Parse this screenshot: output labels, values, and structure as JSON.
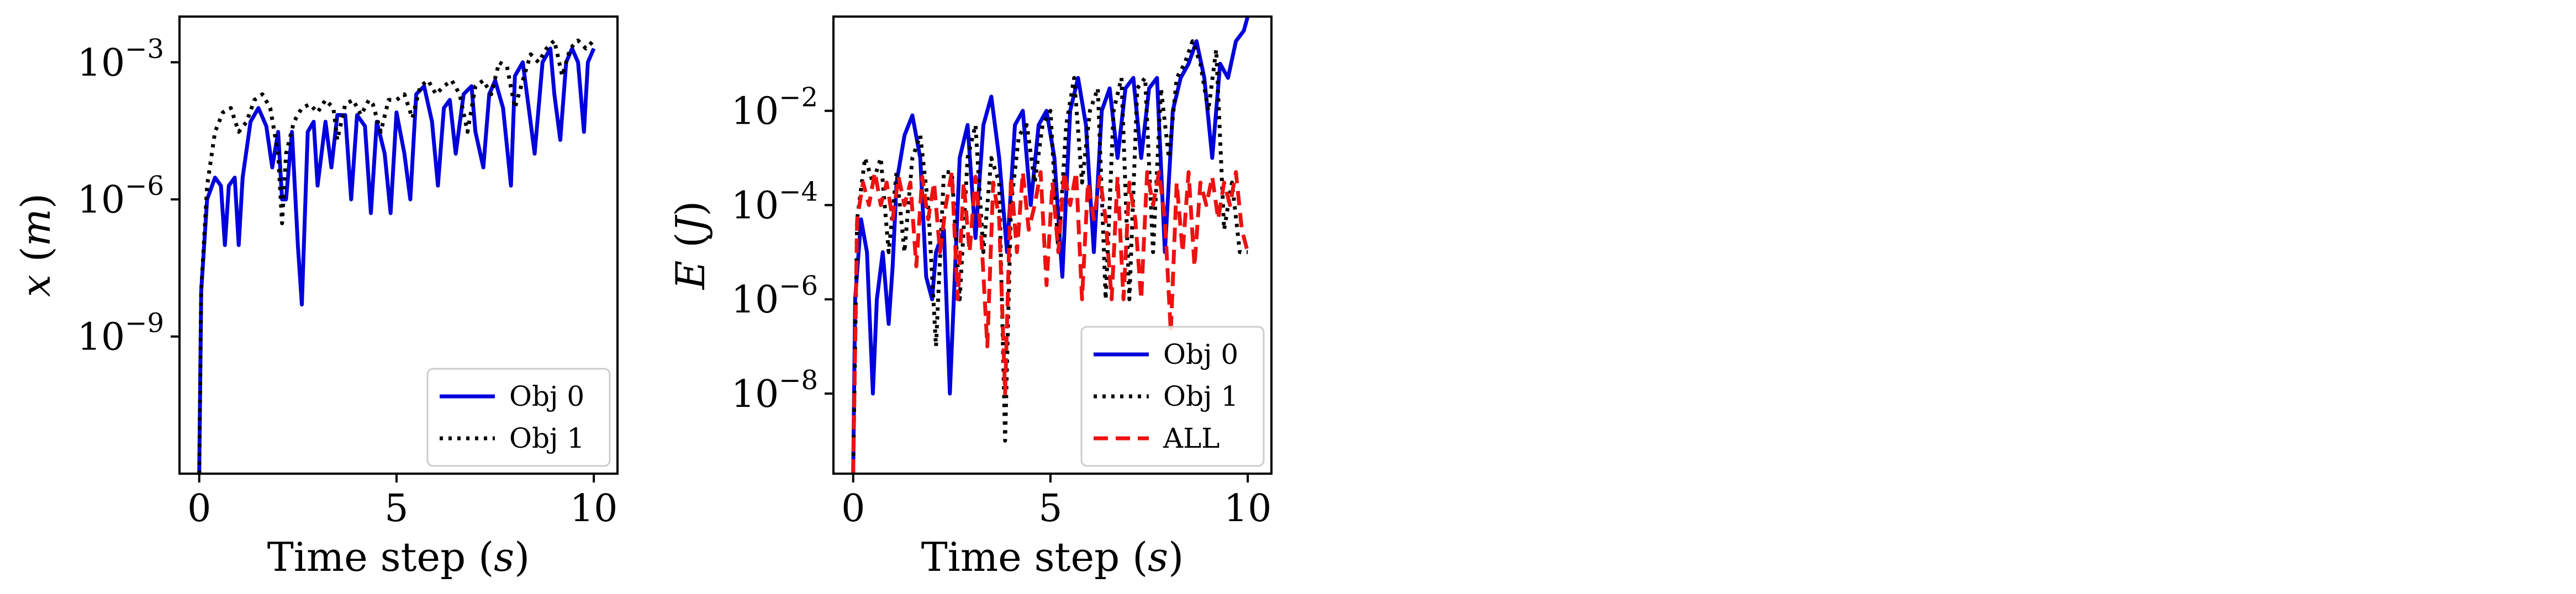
{
  "chart_data": [
    {
      "type": "line",
      "xlabel": "Time step (s)",
      "ylabel": "x (m)",
      "yscale": "log",
      "xlim": [
        -0.5,
        10.6
      ],
      "ylim": [
        1e-12,
        0.01
      ],
      "xticks": [
        0,
        5,
        10
      ],
      "xtick_labels": [
        "0",
        "5",
        "10"
      ],
      "yticks": [
        1e-09,
        1e-06,
        0.001
      ],
      "ytick_labels": [
        "10−9",
        "10−6",
        "10−3"
      ],
      "legend_position": "lower right",
      "series": [
        {
          "name": "Obj 0",
          "style": "solid",
          "color": "#0000dd",
          "x": [
            0,
            0.05,
            0.2,
            0.4,
            0.55,
            0.65,
            0.75,
            0.9,
            1.0,
            1.1,
            1.3,
            1.5,
            1.7,
            1.85,
            2.0,
            2.1,
            2.2,
            2.35,
            2.5,
            2.6,
            2.75,
            2.9,
            3.0,
            3.2,
            3.35,
            3.5,
            3.7,
            3.85,
            4.0,
            4.2,
            4.35,
            4.5,
            4.7,
            4.85,
            5.0,
            5.2,
            5.35,
            5.5,
            5.7,
            5.9,
            6.05,
            6.2,
            6.35,
            6.5,
            6.7,
            6.9,
            7.0,
            7.2,
            7.35,
            7.5,
            7.7,
            7.9,
            8.0,
            8.2,
            8.35,
            8.5,
            8.7,
            8.9,
            9.0,
            9.15,
            9.3,
            9.45,
            9.6,
            9.75,
            9.85,
            10.0
          ],
          "y": [
            1e-12,
            1e-08,
            1e-06,
            3e-06,
            2e-06,
            1e-07,
            2e-06,
            3e-06,
            1e-07,
            3e-06,
            5e-05,
            0.0001,
            4e-05,
            5e-06,
            3e-05,
            1e-06,
            1e-06,
            3e-05,
            1e-07,
            5e-09,
            3e-05,
            5e-05,
            2e-06,
            5e-05,
            5e-06,
            7e-05,
            7e-05,
            1e-06,
            7e-05,
            4e-05,
            5e-07,
            5e-05,
            1e-05,
            5e-07,
            8e-05,
            1e-05,
            1e-06,
            0.0002,
            0.0003,
            5e-05,
            2e-06,
            0.0001,
            0.00015,
            1e-05,
            0.0002,
            0.0003,
            3e-05,
            5e-06,
            0.0002,
            0.0004,
            0.0001,
            2e-06,
            0.0005,
            0.001,
            0.0001,
            1e-05,
            0.001,
            0.002,
            0.0002,
            2e-05,
            0.001,
            0.002,
            0.001,
            3e-05,
            0.001,
            0.002
          ]
        },
        {
          "name": "Obj 1",
          "style": "dotted",
          "color": "#000000",
          "x": [
            0,
            0.05,
            0.2,
            0.4,
            0.6,
            0.8,
            1.0,
            1.2,
            1.4,
            1.6,
            1.8,
            2.0,
            2.1,
            2.2,
            2.4,
            2.6,
            2.8,
            3.0,
            3.2,
            3.4,
            3.5,
            3.7,
            3.9,
            4.1,
            4.3,
            4.4,
            4.6,
            4.8,
            5.0,
            5.2,
            5.4,
            5.6,
            5.8,
            6.0,
            6.2,
            6.4,
            6.6,
            6.8,
            7.0,
            7.2,
            7.4,
            7.6,
            7.8,
            8.0,
            8.2,
            8.4,
            8.6,
            8.8,
            9.0,
            9.2,
            9.4,
            9.6,
            9.8,
            10.0
          ],
          "y": [
            1e-12,
            1e-08,
            2e-06,
            3e-05,
            8e-05,
            0.0001,
            3e-05,
            5e-05,
            0.00015,
            0.0002,
            0.0001,
            1e-05,
            3e-07,
            1e-05,
            5e-05,
            0.0001,
            0.00012,
            8e-05,
            0.00015,
            0.0001,
            2e-05,
            0.00012,
            0.00015,
            7e-05,
            0.00015,
            0.00012,
            3e-05,
            0.00015,
            0.00015,
            0.0002,
            6e-05,
            0.0003,
            0.0004,
            0.0002,
            0.0003,
            0.0004,
            0.0002,
            3e-05,
            0.0003,
            0.0004,
            0.0002,
            0.001,
            0.0008,
            0.0001,
            0.0004,
            0.0015,
            0.001,
            0.002,
            0.003,
            0.0005,
            0.002,
            0.003,
            0.002,
            0.003
          ]
        }
      ]
    },
    {
      "type": "line",
      "xlabel": "Time step (s)",
      "ylabel": "E (J)",
      "yscale": "log",
      "xlim": [
        -0.5,
        10.6
      ],
      "ylim": [
        2e-10,
        1
      ],
      "xticks": [
        0,
        5,
        10
      ],
      "xtick_labels": [
        "0",
        "5",
        "10"
      ],
      "yticks": [
        1e-08,
        1e-06,
        0.0001,
        0.01
      ],
      "ytick_labels": [
        "10−8",
        "10−6",
        "10−4",
        "10−2"
      ],
      "legend_position": "lower right",
      "series": [
        {
          "name": "Obj 0",
          "style": "solid",
          "color": "#0000dd",
          "x": [
            0,
            0.05,
            0.2,
            0.35,
            0.5,
            0.6,
            0.75,
            0.9,
            1.0,
            1.1,
            1.3,
            1.5,
            1.7,
            1.85,
            2.0,
            2.1,
            2.3,
            2.45,
            2.6,
            2.7,
            2.9,
            3.1,
            3.3,
            3.5,
            3.7,
            3.9,
            4.1,
            4.3,
            4.5,
            4.7,
            4.9,
            5.1,
            5.3,
            5.5,
            5.7,
            5.9,
            6.1,
            6.3,
            6.5,
            6.7,
            6.9,
            7.1,
            7.3,
            7.5,
            7.7,
            7.9,
            8.1,
            8.3,
            8.5,
            8.7,
            8.9,
            9.1,
            9.3,
            9.5,
            9.7,
            9.9,
            10.0
          ],
          "y": [
            2e-10,
            1e-06,
            5e-05,
            1e-05,
            1e-08,
            1e-06,
            1e-05,
            3e-07,
            5e-06,
            0.0003,
            0.003,
            0.008,
            0.001,
            3e-06,
            1e-06,
            1e-05,
            3e-05,
            1e-08,
            1e-05,
            0.001,
            0.005,
            2e-05,
            0.005,
            0.02,
            0.001,
            1e-05,
            0.005,
            0.01,
            0.0001,
            0.005,
            0.01,
            0.001,
            3e-06,
            0.01,
            0.05,
            0.005,
            1e-05,
            0.01,
            0.03,
            0.001,
            0.03,
            0.05,
            0.001,
            0.03,
            0.05,
            1e-05,
            0.01,
            0.05,
            0.1,
            0.3,
            0.05,
            0.001,
            0.1,
            0.05,
            0.3,
            0.5,
            1.0
          ]
        },
        {
          "name": "Obj 1",
          "style": "dotted",
          "color": "#000000",
          "x": [
            0,
            0.1,
            0.3,
            0.5,
            0.7,
            0.9,
            1.1,
            1.3,
            1.5,
            1.7,
            1.9,
            2.1,
            2.3,
            2.5,
            2.7,
            2.9,
            3.1,
            3.3,
            3.5,
            3.7,
            3.85,
            4.0,
            4.2,
            4.4,
            4.6,
            4.8,
            5.0,
            5.2,
            5.4,
            5.6,
            5.8,
            6.0,
            6.2,
            6.4,
            6.6,
            6.8,
            7.0,
            7.2,
            7.4,
            7.6,
            7.8,
            8.0,
            8.2,
            8.4,
            8.6,
            8.8,
            9.0,
            9.2,
            9.4,
            9.6,
            9.8,
            10.0
          ],
          "y": [
            2e-10,
            5e-05,
            0.001,
            0.0003,
            0.001,
            1e-05,
            0.0005,
            1e-05,
            0.001,
            0.003,
            0.0001,
            1e-07,
            0.0005,
            0.0005,
            1e-06,
            0.001,
            0.005,
            1e-05,
            0.001,
            0.0003,
            1e-09,
            0.0001,
            0.003,
            0.005,
            0.0003,
            0.005,
            0.01,
            1e-05,
            0.005,
            0.05,
            0.0003,
            0.01,
            0.03,
            1e-06,
            0.01,
            0.05,
            1e-06,
            0.03,
            0.05,
            1e-05,
            0.03,
            0.001,
            0.05,
            0.1,
            0.3,
            0.1,
            0.01,
            0.2,
            3e-05,
            0.0003,
            1e-05,
            1e-05
          ]
        },
        {
          "name": "ALL",
          "style": "dashed",
          "color": "#ee1111",
          "x": [
            0,
            0.1,
            0.25,
            0.4,
            0.55,
            0.7,
            0.85,
            1.0,
            1.15,
            1.3,
            1.45,
            1.6,
            1.75,
            1.9,
            2.05,
            2.2,
            2.35,
            2.5,
            2.65,
            2.8,
            2.95,
            3.1,
            3.25,
            3.4,
            3.55,
            3.7,
            3.85,
            4.0,
            4.15,
            4.3,
            4.45,
            4.6,
            4.75,
            4.9,
            5.05,
            5.2,
            5.35,
            5.5,
            5.65,
            5.8,
            5.95,
            6.1,
            6.25,
            6.4,
            6.55,
            6.7,
            6.85,
            7.0,
            7.15,
            7.3,
            7.45,
            7.6,
            7.75,
            7.9,
            8.05,
            8.2,
            8.35,
            8.5,
            8.65,
            8.8,
            8.95,
            9.1,
            9.25,
            9.4,
            9.55,
            9.7,
            9.85,
            10.0
          ],
          "y": [
            2e-10,
            5e-05,
            0.0003,
            0.0001,
            0.0005,
            0.0001,
            0.0003,
            5e-05,
            0.0004,
            0.0001,
            0.0003,
            5e-06,
            0.0004,
            5e-05,
            0.0003,
            1e-05,
            0.0001,
            0.0005,
            1e-06,
            0.0003,
            1e-05,
            0.0004,
            2e-05,
            1e-07,
            0.0003,
            5e-05,
            1e-08,
            0.0004,
            1e-05,
            0.0005,
            3e-05,
            0.0001,
            0.0005,
            2e-06,
            0.0003,
            1e-05,
            0.0005,
            0.0001,
            0.0005,
            1e-06,
            0.0003,
            5e-05,
            0.0004,
            5e-05,
            1e-06,
            0.0004,
            1e-06,
            0.0003,
            5e-05,
            1e-06,
            0.0005,
            0.0001,
            0.0005,
            5e-05,
            2e-07,
            0.0003,
            1e-05,
            0.0005,
            5e-06,
            0.0003,
            0.0001,
            0.0004,
            5e-05,
            0.0003,
            0.0001,
            0.0005,
            3e-05,
            1e-05
          ]
        }
      ]
    }
  ]
}
